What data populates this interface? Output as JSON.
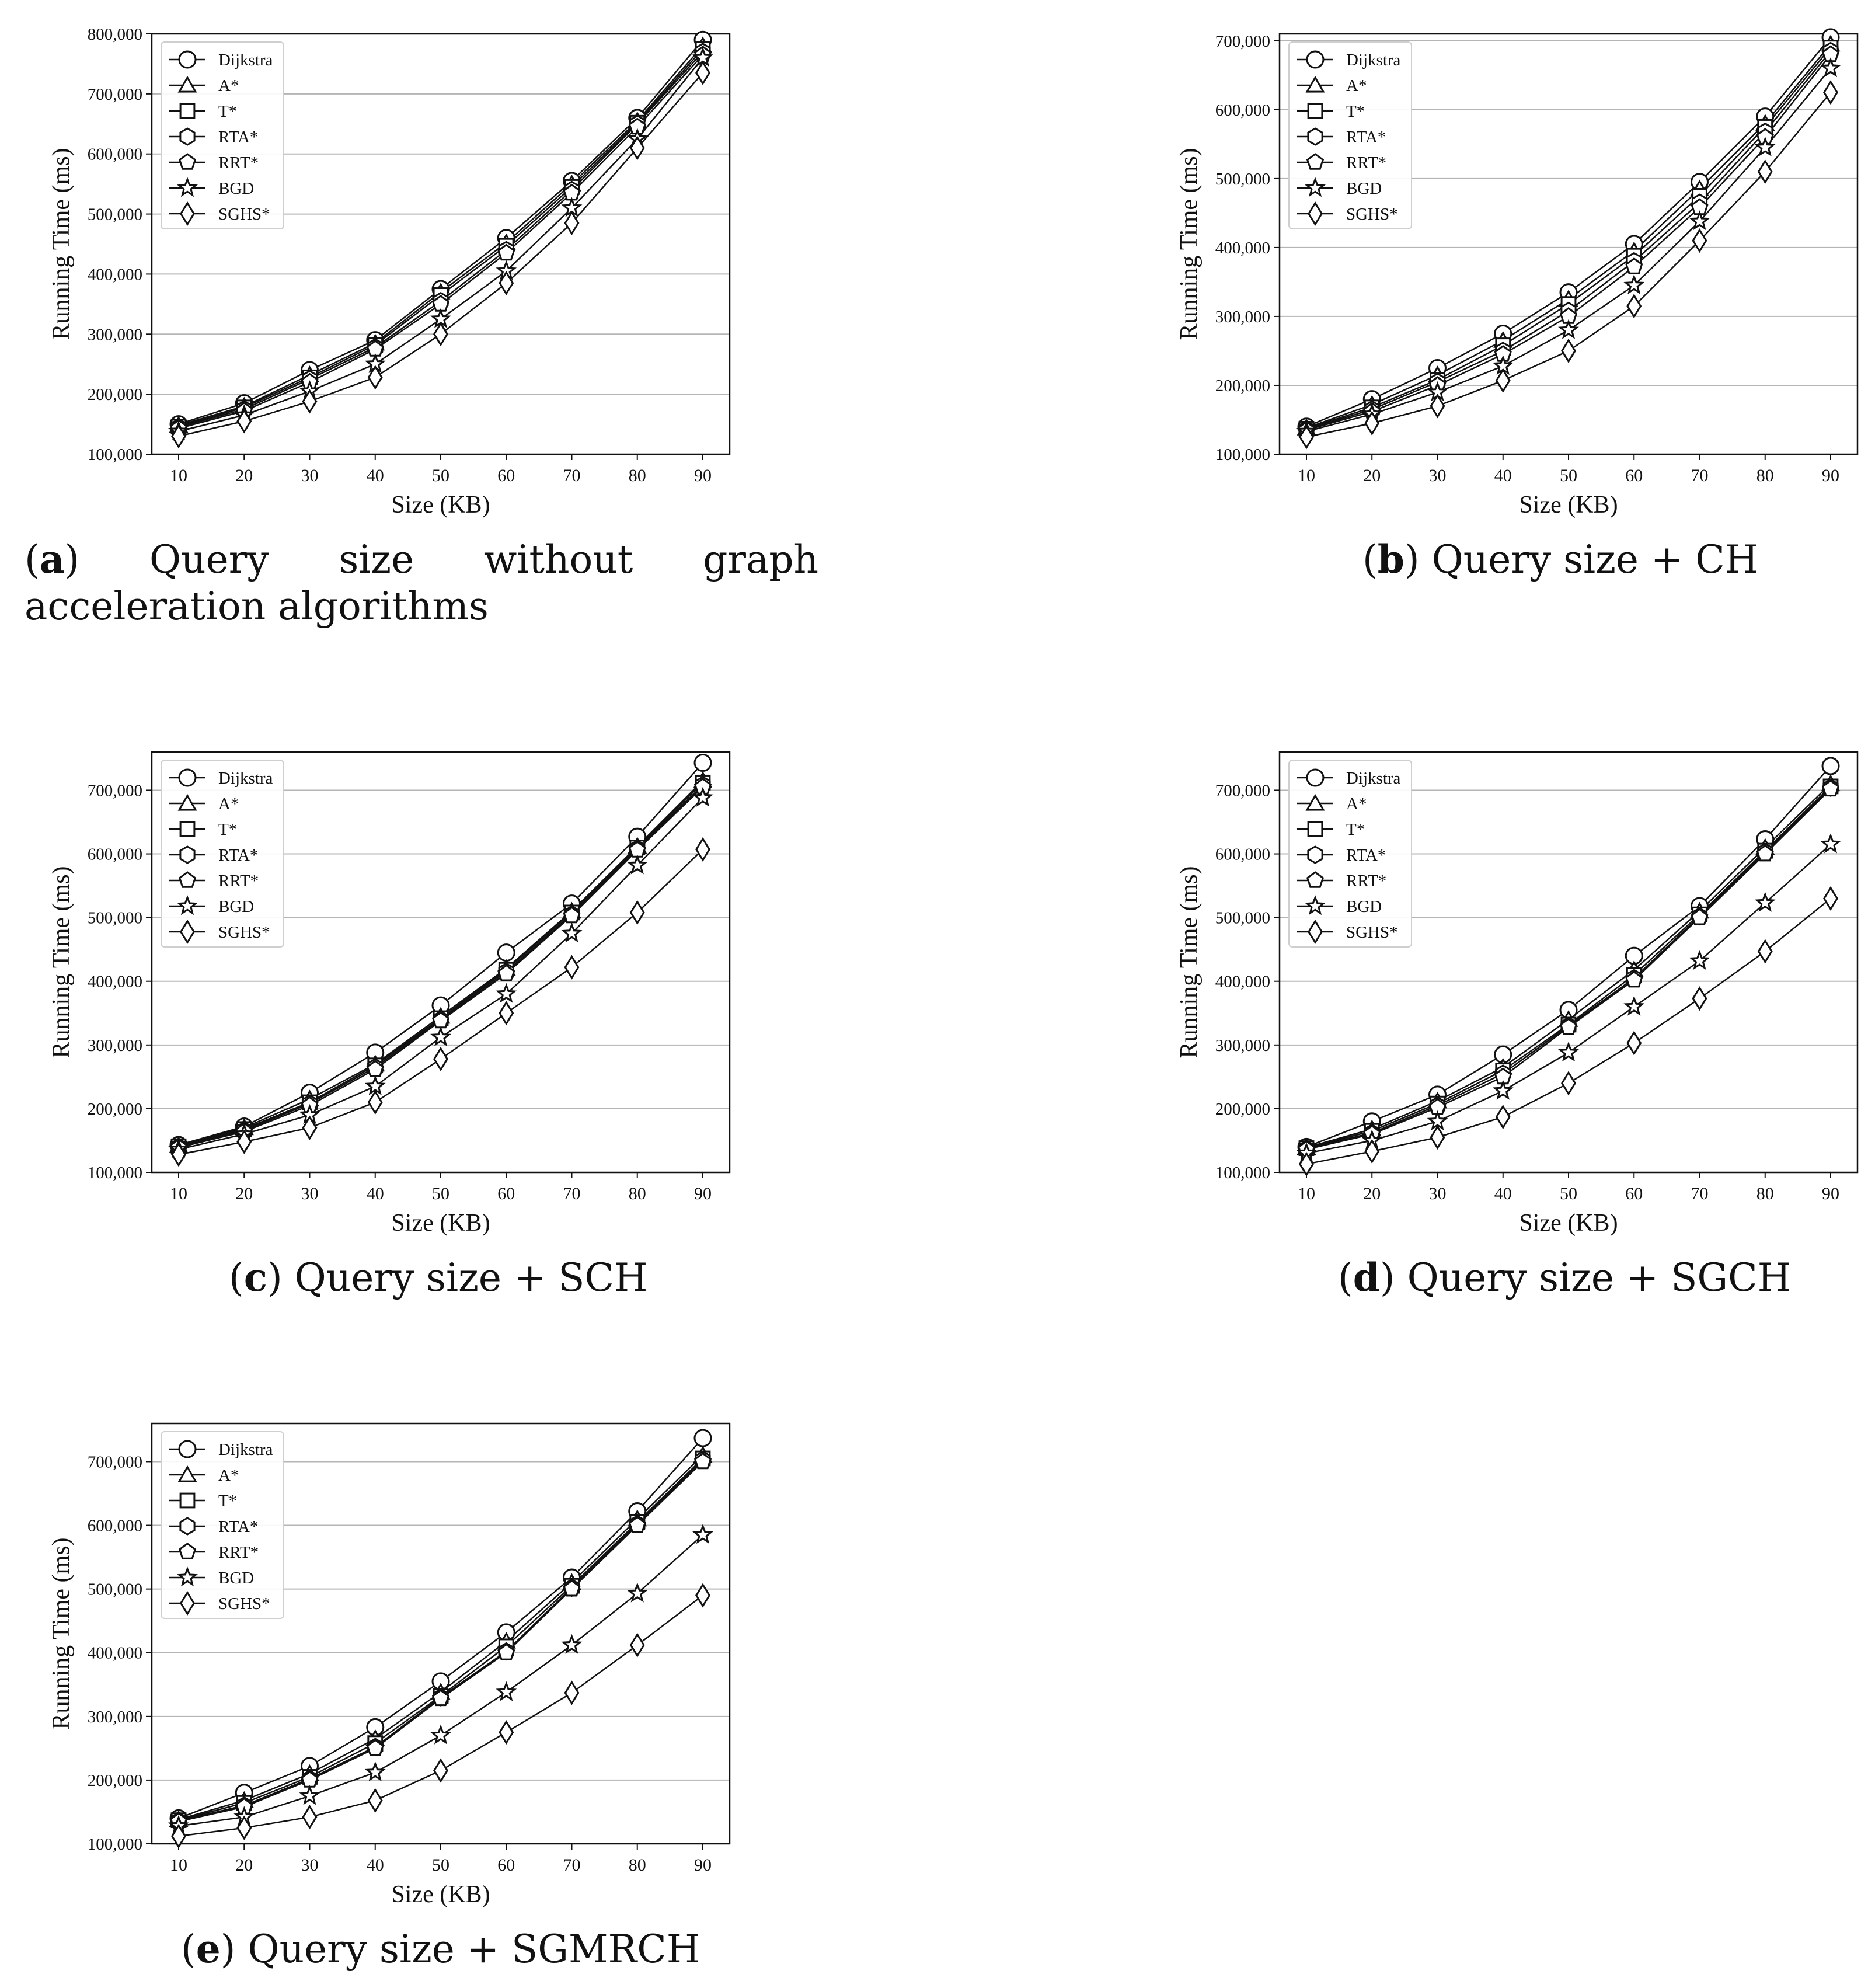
{
  "chart_data": [
    {
      "type": "line",
      "panel_letter": "a",
      "caption": "Query size without graph acceleration algorithms",
      "xlabel": "Size (KB)",
      "ylabel": "Running Time (ms)",
      "x": [
        10,
        20,
        30,
        40,
        50,
        60,
        70,
        80,
        90
      ],
      "ylim": [
        100000,
        800000
      ],
      "yticks": [
        100000,
        200000,
        300000,
        400000,
        500000,
        600000,
        700000,
        800000
      ],
      "ytick_labels": [
        "100,000",
        "200,000",
        "300,000",
        "400,000",
        "500,000",
        "600,000",
        "700,000",
        "800,000"
      ],
      "grid": "horizontal",
      "legend_position": "top-left",
      "series": [
        {
          "name": "Dijkstra",
          "marker": "circle",
          "values": [
            150000,
            185000,
            240000,
            290000,
            375000,
            460000,
            555000,
            660000,
            790000
          ]
        },
        {
          "name": "A*",
          "marker": "triangle",
          "values": [
            148000,
            180000,
            232000,
            285000,
            370000,
            452000,
            550000,
            655000,
            780000
          ]
        },
        {
          "name": "T*",
          "marker": "square",
          "values": [
            146000,
            178000,
            228000,
            282000,
            365000,
            447000,
            545000,
            652000,
            775000
          ]
        },
        {
          "name": "RTA*",
          "marker": "hexagon",
          "values": [
            145000,
            175000,
            225000,
            278000,
            355000,
            440000,
            540000,
            650000,
            770000
          ]
        },
        {
          "name": "RRT*",
          "marker": "pentagon",
          "values": [
            143000,
            172000,
            220000,
            275000,
            350000,
            435000,
            535000,
            645000,
            765000
          ]
        },
        {
          "name": "BGD",
          "marker": "star",
          "values": [
            138000,
            165000,
            205000,
            250000,
            325000,
            405000,
            510000,
            625000,
            760000
          ]
        },
        {
          "name": "SGHS*",
          "marker": "diamond",
          "values": [
            130000,
            155000,
            188000,
            228000,
            300000,
            385000,
            485000,
            610000,
            735000
          ]
        }
      ]
    },
    {
      "type": "line",
      "panel_letter": "b",
      "caption": "Query size + CH",
      "xlabel": "Size (KB)",
      "ylabel": "Running Time (ms)",
      "x": [
        10,
        20,
        30,
        40,
        50,
        60,
        70,
        80,
        90
      ],
      "ylim": [
        100000,
        710000
      ],
      "yticks": [
        100000,
        200000,
        300000,
        400000,
        500000,
        600000,
        700000
      ],
      "ytick_labels": [
        "100,000",
        "200,000",
        "300,000",
        "400,000",
        "500,000",
        "600,000",
        "700,000"
      ],
      "grid": "horizontal",
      "legend_position": "top-left",
      "series": [
        {
          "name": "Dijkstra",
          "marker": "circle",
          "values": [
            140000,
            180000,
            225000,
            275000,
            335000,
            405000,
            495000,
            590000,
            705000
          ]
        },
        {
          "name": "A*",
          "marker": "triangle",
          "values": [
            138000,
            172000,
            215000,
            265000,
            325000,
            395000,
            485000,
            580000,
            695000
          ]
        },
        {
          "name": "T*",
          "marker": "square",
          "values": [
            137000,
            168000,
            208000,
            258000,
            318000,
            388000,
            475000,
            575000,
            690000
          ]
        },
        {
          "name": "RTA*",
          "marker": "hexagon",
          "values": [
            136000,
            165000,
            205000,
            250000,
            308000,
            380000,
            465000,
            568000,
            685000
          ]
        },
        {
          "name": "RRT*",
          "marker": "pentagon",
          "values": [
            135000,
            162000,
            200000,
            245000,
            300000,
            372000,
            458000,
            560000,
            680000
          ]
        },
        {
          "name": "BGD",
          "marker": "star",
          "values": [
            133000,
            158000,
            190000,
            228000,
            280000,
            345000,
            438000,
            545000,
            660000
          ]
        },
        {
          "name": "SGHS*",
          "marker": "diamond",
          "values": [
            125000,
            145000,
            170000,
            207000,
            250000,
            315000,
            410000,
            510000,
            625000
          ]
        }
      ]
    },
    {
      "type": "line",
      "panel_letter": "c",
      "caption": "Query size + SCH",
      "xlabel": "Size (KB)",
      "ylabel": "Running Time (ms)",
      "x": [
        10,
        20,
        30,
        40,
        50,
        60,
        70,
        80,
        90
      ],
      "ylim": [
        100000,
        760000
      ],
      "yticks": [
        100000,
        200000,
        300000,
        400000,
        500000,
        600000,
        700000
      ],
      "ytick_labels": [
        "100,000",
        "200,000",
        "300,000",
        "400,000",
        "500,000",
        "600,000",
        "700,000"
      ],
      "grid": "horizontal",
      "legend_position": "top-left",
      "series": [
        {
          "name": "Dijkstra",
          "marker": "circle",
          "values": [
            143000,
            172000,
            225000,
            288000,
            362000,
            445000,
            522000,
            627000,
            743000
          ]
        },
        {
          "name": "A*",
          "marker": "triangle",
          "values": [
            142000,
            170000,
            215000,
            270000,
            345000,
            420000,
            510000,
            612000,
            715000
          ]
        },
        {
          "name": "T*",
          "marker": "square",
          "values": [
            141000,
            168000,
            210000,
            268000,
            342000,
            418000,
            508000,
            610000,
            712000
          ]
        },
        {
          "name": "RTA*",
          "marker": "hexagon",
          "values": [
            140000,
            166000,
            208000,
            265000,
            340000,
            415000,
            505000,
            608000,
            708000
          ]
        },
        {
          "name": "RRT*",
          "marker": "pentagon",
          "values": [
            139000,
            164000,
            205000,
            262000,
            338000,
            412000,
            503000,
            606000,
            705000
          ]
        },
        {
          "name": "BGD",
          "marker": "star",
          "values": [
            136000,
            160000,
            190000,
            235000,
            312000,
            380000,
            475000,
            582000,
            688000
          ]
        },
        {
          "name": "SGHS*",
          "marker": "diamond",
          "values": [
            128000,
            148000,
            170000,
            210000,
            278000,
            350000,
            422000,
            508000,
            607000
          ]
        }
      ]
    },
    {
      "type": "line",
      "panel_letter": "d",
      "caption": "Query size + SGCH",
      "xlabel": "Size (KB)",
      "ylabel": "Running Time (ms)",
      "x": [
        10,
        20,
        30,
        40,
        50,
        60,
        70,
        80,
        90
      ],
      "ylim": [
        100000,
        760000
      ],
      "yticks": [
        100000,
        200000,
        300000,
        400000,
        500000,
        600000,
        700000
      ],
      "ytick_labels": [
        "100,000",
        "200,000",
        "300,000",
        "400,000",
        "500,000",
        "600,000",
        "700,000"
      ],
      "grid": "horizontal",
      "legend_position": "top-left",
      "series": [
        {
          "name": "Dijkstra",
          "marker": "circle",
          "values": [
            140000,
            180000,
            222000,
            285000,
            355000,
            440000,
            518000,
            623000,
            738000
          ]
        },
        {
          "name": "A*",
          "marker": "triangle",
          "values": [
            139000,
            168000,
            212000,
            265000,
            340000,
            418000,
            510000,
            610000,
            710000
          ]
        },
        {
          "name": "T*",
          "marker": "square",
          "values": [
            138000,
            165000,
            208000,
            260000,
            332000,
            410000,
            505000,
            605000,
            706000
          ]
        },
        {
          "name": "RTA*",
          "marker": "hexagon",
          "values": [
            137000,
            162000,
            205000,
            255000,
            330000,
            405000,
            502000,
            603000,
            704000
          ]
        },
        {
          "name": "RRT*",
          "marker": "pentagon",
          "values": [
            136000,
            160000,
            202000,
            250000,
            328000,
            402000,
            500000,
            600000,
            702000
          ]
        },
        {
          "name": "BGD",
          "marker": "star",
          "values": [
            130000,
            150000,
            180000,
            228000,
            288000,
            360000,
            432000,
            523000,
            615000
          ]
        },
        {
          "name": "SGHS*",
          "marker": "diamond",
          "values": [
            113000,
            133000,
            155000,
            187000,
            240000,
            303000,
            373000,
            447000,
            530000
          ]
        }
      ]
    },
    {
      "type": "line",
      "panel_letter": "e",
      "caption": "Query size + SGMRCH",
      "xlabel": "Size (KB)",
      "ylabel": "Running Time (ms)",
      "x": [
        10,
        20,
        30,
        40,
        50,
        60,
        70,
        80,
        90
      ],
      "ylim": [
        100000,
        760000
      ],
      "yticks": [
        100000,
        200000,
        300000,
        400000,
        500000,
        600000,
        700000
      ],
      "ytick_labels": [
        "100,000",
        "200,000",
        "300,000",
        "400,000",
        "500,000",
        "600,000",
        "700,000"
      ],
      "grid": "horizontal",
      "legend_position": "top-left",
      "series": [
        {
          "name": "Dijkstra",
          "marker": "circle",
          "values": [
            140000,
            180000,
            222000,
            283000,
            355000,
            432000,
            518000,
            622000,
            737000
          ]
        },
        {
          "name": "A*",
          "marker": "triangle",
          "values": [
            138000,
            168000,
            210000,
            265000,
            338000,
            418000,
            510000,
            610000,
            710000
          ]
        },
        {
          "name": "T*",
          "marker": "square",
          "values": [
            137000,
            164000,
            205000,
            258000,
            332000,
            410000,
            505000,
            605000,
            705000
          ]
        },
        {
          "name": "RTA*",
          "marker": "hexagon",
          "values": [
            136000,
            160000,
            202000,
            252000,
            330000,
            402000,
            502000,
            602000,
            703000
          ]
        },
        {
          "name": "RRT*",
          "marker": "pentagon",
          "values": [
            135000,
            158000,
            200000,
            250000,
            328000,
            400000,
            500000,
            600000,
            700000
          ]
        },
        {
          "name": "BGD",
          "marker": "star",
          "values": [
            128000,
            142000,
            175000,
            212000,
            270000,
            338000,
            412000,
            493000,
            585000
          ]
        },
        {
          "name": "SGHS*",
          "marker": "diamond",
          "values": [
            112000,
            125000,
            142000,
            168000,
            215000,
            275000,
            337000,
            412000,
            490000
          ]
        }
      ]
    }
  ]
}
